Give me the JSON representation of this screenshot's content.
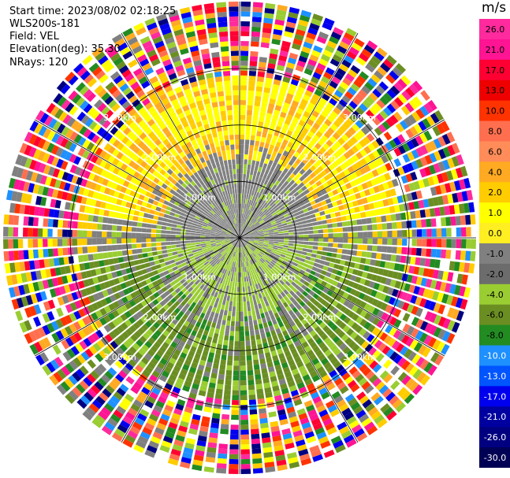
{
  "header": {
    "start_time": "Start time: 2023/08/02 02:18:25",
    "instrument": "WLS200s-181",
    "field": "Field: VEL",
    "elevation": "Elevation(deg): 35.30",
    "nrays": "NRays: 120"
  },
  "colorbar": {
    "unit": "m/s",
    "ticks": [
      "26.0",
      "21.0",
      "17.0",
      "13.0",
      "10.0",
      "8.0",
      "6.0",
      "4.0",
      "2.0",
      "1.0",
      "0.0",
      "-1.0",
      "-2.0",
      "-4.0",
      "-6.0",
      "-8.0",
      "-10.0",
      "-13.0",
      "-17.0",
      "-21.0",
      "-26.0",
      "-30.0"
    ],
    "colors": [
      "#ff2a9d",
      "#ff1493",
      "#ff0033",
      "#ee0000",
      "#ff3300",
      "#ff6f4f",
      "#ff8c59",
      "#ffaa22",
      "#ffcc00",
      "#ffff00",
      "#ffee22",
      "#808080",
      "#6c6c6c",
      "#9acd32",
      "#6b8e23",
      "#228b22",
      "#1e90ff",
      "#0055ff",
      "#0000ee",
      "#0000a0",
      "#000080",
      "#000055"
    ]
  },
  "chart_data": {
    "type": "ppi",
    "field": "VEL",
    "units": "m/s",
    "nrays": 120,
    "elevation_deg": 35.3,
    "range_ring_labels": [
      "1.00km",
      "2.00km",
      "3.00km"
    ],
    "max_range_km": 3.6,
    "regions": [
      {
        "from_km": 0.0,
        "to_km": 1.3,
        "description": "near-zero velocity, gray (0.0 to -1.0 m/s) north, green (-1.0 to -2.0) south-east"
      },
      {
        "from_km": 1.0,
        "to_km": 2.5,
        "northern_half": "yellow/orange 2.0 to 6.0 m/s",
        "southern_half": "olive/green -2.0 to -6.0 m/s"
      },
      {
        "from_km": 2.5,
        "to_km": 3.6,
        "description": "noise, random colors across full scale"
      }
    ]
  }
}
